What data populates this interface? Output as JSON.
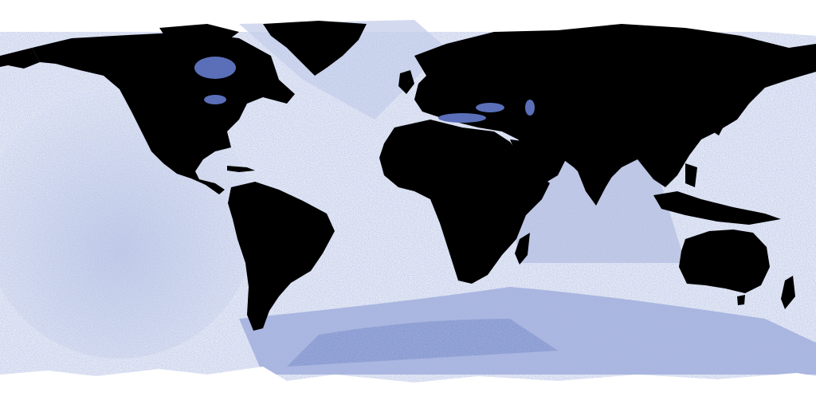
{
  "map": {
    "projection": "equirectangular",
    "style": "world map, land masked black, ocean shown as blue point density",
    "colors": {
      "background": "#ffffff",
      "land": "#000000",
      "ocean_light": "#e9ecf6",
      "ocean_mid": "#aeb9df",
      "ocean_dense": "#6f82c6",
      "ocean_darkest": "#3e55a8"
    },
    "landmasses": [
      "north-america",
      "greenland",
      "south-america",
      "europe",
      "africa",
      "asia",
      "arabia",
      "india",
      "australia",
      "indonesia",
      "japan",
      "british-isles",
      "madagascar",
      "new-zealand",
      "caribbean"
    ],
    "labels_visible": false
  }
}
